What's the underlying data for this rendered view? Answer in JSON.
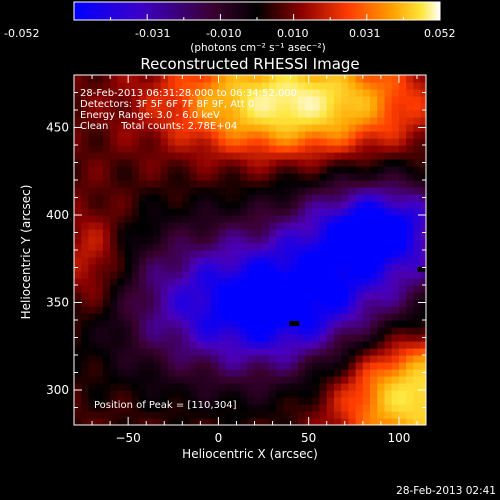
{
  "colorbar": {
    "tick_labels": [
      "-0.052",
      "-0.031",
      "-0.010",
      "0.010",
      "0.031",
      "0.052"
    ],
    "unit_label": "(photons cm⁻² s⁻¹ asec⁻²)",
    "range": [
      -0.052,
      0.052
    ]
  },
  "title": "Reconstructed RHESSI Image",
  "info": {
    "time_range": "28-Feb-2013 06:31:28.000 to 06:34:52.000",
    "detectors": "Detectors: 3F 5F 6F 7F 8F 9F, Att 0",
    "energy": "Energy Range: 3.0 - 6.0 keV",
    "clean": "Clean    Total counts: 2.78E+04",
    "peak": "Position of Peak = [110,304]"
  },
  "footer_timestamp": "28-Feb-2013 02:41",
  "chart_data": {
    "type": "heatmap",
    "title": "Reconstructed RHESSI Image",
    "xlabel": "Heliocentric X (arcsec)",
    "ylabel": "Heliocentric Y (arcsec)",
    "xlim": [
      -80,
      115
    ],
    "ylim": [
      280,
      480
    ],
    "x_ticks": [
      -50,
      0,
      50,
      100
    ],
    "y_ticks": [
      300,
      350,
      400,
      450
    ],
    "x_tick_labels": [
      "−50",
      "0",
      "50",
      "100"
    ],
    "y_tick_labels": [
      "300",
      "350",
      "400",
      "450"
    ],
    "value_range": [
      -0.052,
      0.052
    ],
    "colormap": [
      "#0000ff",
      "#4b00b8",
      "#3a0030",
      "#000000",
      "#8a0000",
      "#ff3c00",
      "#ffa000",
      "#ffe63c",
      "#ffffff"
    ],
    "grid_cell_arcsec": 4,
    "features": [
      {
        "kind": "bright",
        "x": 40,
        "y": 465,
        "sx": 45,
        "sy": 20,
        "amp": 0.052
      },
      {
        "kind": "bright",
        "x": 110,
        "y": 300,
        "sx": 32,
        "sy": 25,
        "amp": 0.052
      },
      {
        "kind": "bright",
        "x": -70,
        "y": 372,
        "sx": 14,
        "sy": 22,
        "amp": 0.02
      },
      {
        "kind": "dark",
        "x": 30,
        "y": 350,
        "sx": 60,
        "sy": 32,
        "amp": -0.052
      },
      {
        "kind": "dark",
        "x": 90,
        "y": 395,
        "sx": 30,
        "sy": 20,
        "amp": -0.04
      }
    ],
    "markers": [
      {
        "x": 42,
        "y": 338
      },
      {
        "x": 113,
        "y": 369
      }
    ]
  }
}
